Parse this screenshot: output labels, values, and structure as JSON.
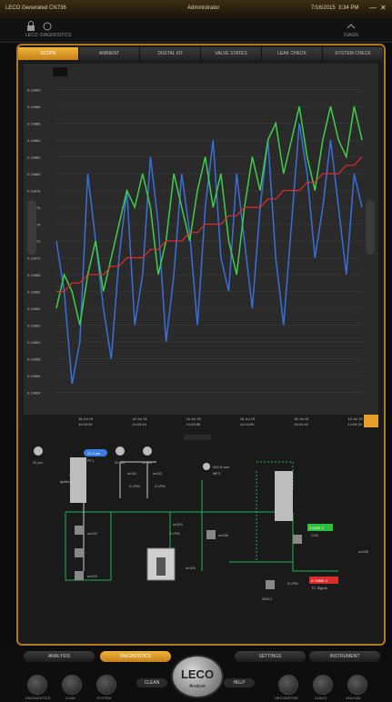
{
  "window": {
    "title": "LECO Generated CN736",
    "user": "Administrator",
    "date": "7/16/2015",
    "time": "3:34 PM"
  },
  "statusbar": {
    "left_label": "LECO",
    "left2_label": "DIAGNOSTICS",
    "right_label": "DIAGN"
  },
  "tabs": [
    "SCOPE",
    "AMBIENT",
    "DIGITAL I/O",
    "VALVE STATES",
    "LEAK CHECK",
    "SYSTEM CHECK"
  ],
  "chart_data": {
    "type": "line",
    "title": "",
    "xlabel": "",
    "ylabel": "",
    "yticks": [
      "0.19890",
      "0.19888",
      "0.19886",
      "0.19884",
      "0.19882",
      "0.19880",
      "0.19878",
      "0.19876",
      "0.19874",
      "0.19872",
      "0.19870",
      "0.19868",
      "0.19866",
      "0.19864",
      "0.19862",
      "0.19860",
      "0.19858",
      "0.19856",
      "0.19854"
    ],
    "xticks": [
      {
        "date": "16 Jul 15",
        "time": "14:03:30"
      },
      {
        "date": "16 Jul 15",
        "time": "14:03:43"
      },
      {
        "date": "16 Jul 15",
        "time": "14:03:56"
      },
      {
        "date": "16 Jul 15",
        "time": "14:04:09"
      },
      {
        "date": "16 Jul 15",
        "time": "14:04:18"
      },
      {
        "date": "16 Jul 15",
        "time": "14:04:29"
      }
    ],
    "ylim": [
      0.19852,
      0.19892
    ],
    "series": [
      {
        "color": "#3a6fd8",
        "values": [
          0.19872,
          0.19866,
          0.19855,
          0.1986,
          0.1988,
          0.19872,
          0.19864,
          0.19858,
          0.1987,
          0.19878,
          0.19862,
          0.19868,
          0.19882,
          0.19874,
          0.1986,
          0.19868,
          0.1988,
          0.19873,
          0.19862,
          0.19876,
          0.19884,
          0.1987,
          0.19866,
          0.1988,
          0.19872,
          0.19864,
          0.19876,
          0.19884,
          0.1987,
          0.19862,
          0.19874,
          0.19886,
          0.1988,
          0.1987,
          0.19876,
          0.19884,
          0.19876,
          0.19868,
          0.1988,
          0.19876
        ]
      },
      {
        "color": "#3ecf4a",
        "values": [
          0.19864,
          0.19868,
          0.19866,
          0.19862,
          0.19868,
          0.19872,
          0.19866,
          0.1987,
          0.19874,
          0.19878,
          0.19876,
          0.1988,
          0.19876,
          0.19868,
          0.19872,
          0.1988,
          0.19876,
          0.19872,
          0.19878,
          0.19882,
          0.19876,
          0.1988,
          0.19872,
          0.19868,
          0.19876,
          0.19882,
          0.19878,
          0.19884,
          0.19886,
          0.1988,
          0.19884,
          0.19888,
          0.19882,
          0.19878,
          0.19884,
          0.19888,
          0.19884,
          0.19882,
          0.19888,
          0.19884
        ]
      },
      {
        "color": "#e12c2c",
        "values": [
          0.19866,
          0.19866,
          0.19867,
          0.19867,
          0.19868,
          0.19868,
          0.19868,
          0.19869,
          0.19869,
          0.1987,
          0.1987,
          0.1987,
          0.19871,
          0.19871,
          0.19872,
          0.19872,
          0.19872,
          0.19873,
          0.19873,
          0.19874,
          0.19874,
          0.19874,
          0.19875,
          0.19875,
          0.19876,
          0.19876,
          0.19876,
          0.19877,
          0.19877,
          0.19878,
          0.19878,
          0.19878,
          0.19879,
          0.19879,
          0.1988,
          0.1988,
          0.1988,
          0.19881,
          0.19881,
          0.19882
        ]
      }
    ]
  },
  "schematic": {
    "labels": {
      "p1": "22 psi",
      "pt1": "PT1",
      "p2": "20 psi",
      "p3": "20 psi",
      "temp1": "950.5 °C",
      "furnace": "Ignition Purifier",
      "temp2": "850.3 °C",
      "flow": "492.8 ccm",
      "mfc": "MFC",
      "co2_value": "3.0000 V",
      "co2": "CO2",
      "tc_value": "0.79885 V",
      "tc": "TC Signal",
      "v1": "sv111",
      "v2": "sv112",
      "v3": "sv104",
      "v4": "sv105",
      "v5": "sv106",
      "v6": "sv108",
      "v7": "sv102",
      "v8": "sv103",
      "lpm1": "2 LPM",
      "lpm2": "2 LPM",
      "lpm3": "2 LPM",
      "lpm4": "5 LPM",
      "dscc": "DSCC",
      "ambient": "22.3 psi"
    }
  },
  "bottom": {
    "tabs": [
      "ANALYSIS",
      "DIAGNOSTICS",
      "SETTINGS",
      "INSTRUMENT"
    ],
    "logo": "LECO",
    "left_button": "CLEAN",
    "right_button": "HELP",
    "center_label": "Analyze",
    "icons_left": [
      "DIAGNOSTICS",
      "LOAD",
      "SYSTEM"
    ],
    "icons_right": [
      "DECOMPOSE",
      "LEAKS",
      "UNLOAD"
    ]
  }
}
